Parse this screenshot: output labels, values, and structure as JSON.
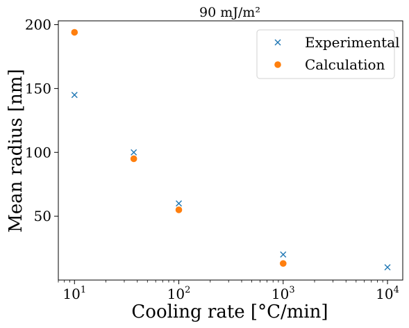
{
  "chart_data": {
    "type": "scatter",
    "title": "90 mJ/m²",
    "xlabel": "Cooling rate [°C/min]",
    "ylabel": "Mean radius [nm]",
    "x_scale": "log",
    "xlim": [
      7,
      14000
    ],
    "ylim": [
      0,
      203
    ],
    "x_ticks": [
      {
        "value": 10,
        "base": "10",
        "exp": "1"
      },
      {
        "value": 100,
        "base": "10",
        "exp": "2"
      },
      {
        "value": 1000,
        "base": "10",
        "exp": "3"
      },
      {
        "value": 10000,
        "base": "10",
        "exp": "4"
      }
    ],
    "y_ticks": [
      {
        "value": 50,
        "label": "50"
      },
      {
        "value": 100,
        "label": "100"
      },
      {
        "value": 150,
        "label": "150"
      },
      {
        "value": 200,
        "label": "200"
      }
    ],
    "legend_position": "top-right",
    "grid": false,
    "series": [
      {
        "name": "Experimental",
        "marker": "x",
        "color": "#1f77b4",
        "points": [
          {
            "x": 10,
            "y": 145
          },
          {
            "x": 37,
            "y": 100
          },
          {
            "x": 100,
            "y": 60
          },
          {
            "x": 1000,
            "y": 20
          },
          {
            "x": 10000,
            "y": 10
          }
        ]
      },
      {
        "name": "Calculation",
        "marker": "circle",
        "color": "#ff7f0e",
        "points": [
          {
            "x": 10,
            "y": 194
          },
          {
            "x": 37,
            "y": 95
          },
          {
            "x": 100,
            "y": 55
          },
          {
            "x": 1000,
            "y": 13
          }
        ]
      }
    ]
  }
}
